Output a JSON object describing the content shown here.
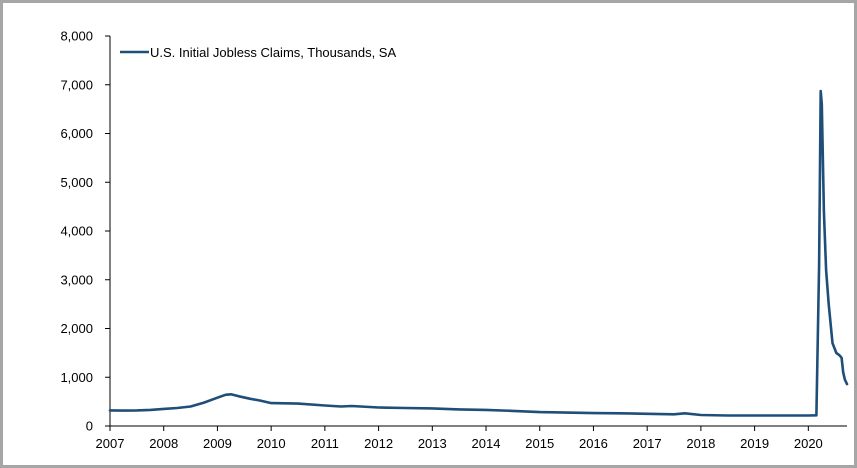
{
  "chart_data": {
    "type": "line",
    "legend_placement": "top-left",
    "grid": false,
    "xlim": [
      2007.0,
      2020.72
    ],
    "ylim": [
      0,
      8000
    ],
    "x_ticks": [
      2007,
      2008,
      2009,
      2010,
      2011,
      2012,
      2013,
      2014,
      2015,
      2016,
      2017,
      2018,
      2019,
      2020
    ],
    "x_tick_labels": [
      "2007",
      "2008",
      "2009",
      "2010",
      "2011",
      "2012",
      "2013",
      "2014",
      "2015",
      "2016",
      "2017",
      "2018",
      "2019",
      "2020"
    ],
    "y_ticks": [
      0,
      1000,
      2000,
      3000,
      4000,
      5000,
      6000,
      7000,
      8000
    ],
    "y_tick_labels": [
      "0",
      "1,000",
      "2,000",
      "3,000",
      "4,000",
      "5,000",
      "6,000",
      "7,000",
      "8,000"
    ],
    "colors": {
      "series": "#1f4e79",
      "axis": "#000000",
      "frame": "#a6a6a6"
    },
    "series": [
      {
        "name": "U.S. Initial Jobless Claims, Thousands, SA",
        "x": [
          2007.0,
          2007.25,
          2007.5,
          2007.75,
          2008.0,
          2008.25,
          2008.5,
          2008.75,
          2009.0,
          2009.15,
          2009.25,
          2009.4,
          2009.6,
          2009.8,
          2010.0,
          2010.5,
          2011.0,
          2011.3,
          2011.5,
          2012.0,
          2012.5,
          2013.0,
          2013.5,
          2014.0,
          2014.5,
          2015.0,
          2015.5,
          2016.0,
          2016.5,
          2017.0,
          2017.5,
          2017.7,
          2018.0,
          2018.5,
          2019.0,
          2019.5,
          2020.0,
          2020.15,
          2020.2,
          2020.23,
          2020.25,
          2020.29,
          2020.33,
          2020.38,
          2020.45,
          2020.52,
          2020.58,
          2020.62,
          2020.65,
          2020.68,
          2020.72
        ],
        "y": [
          320,
          315,
          320,
          330,
          350,
          370,
          400,
          480,
          580,
          640,
          650,
          610,
          560,
          520,
          470,
          460,
          420,
          400,
          410,
          380,
          370,
          360,
          340,
          330,
          310,
          285,
          275,
          265,
          260,
          250,
          240,
          260,
          225,
          215,
          215,
          215,
          215,
          220,
          3300,
          6870,
          6600,
          4400,
          3200,
          2500,
          1700,
          1500,
          1450,
          1400,
          1100,
          950,
          860
        ]
      }
    ]
  }
}
